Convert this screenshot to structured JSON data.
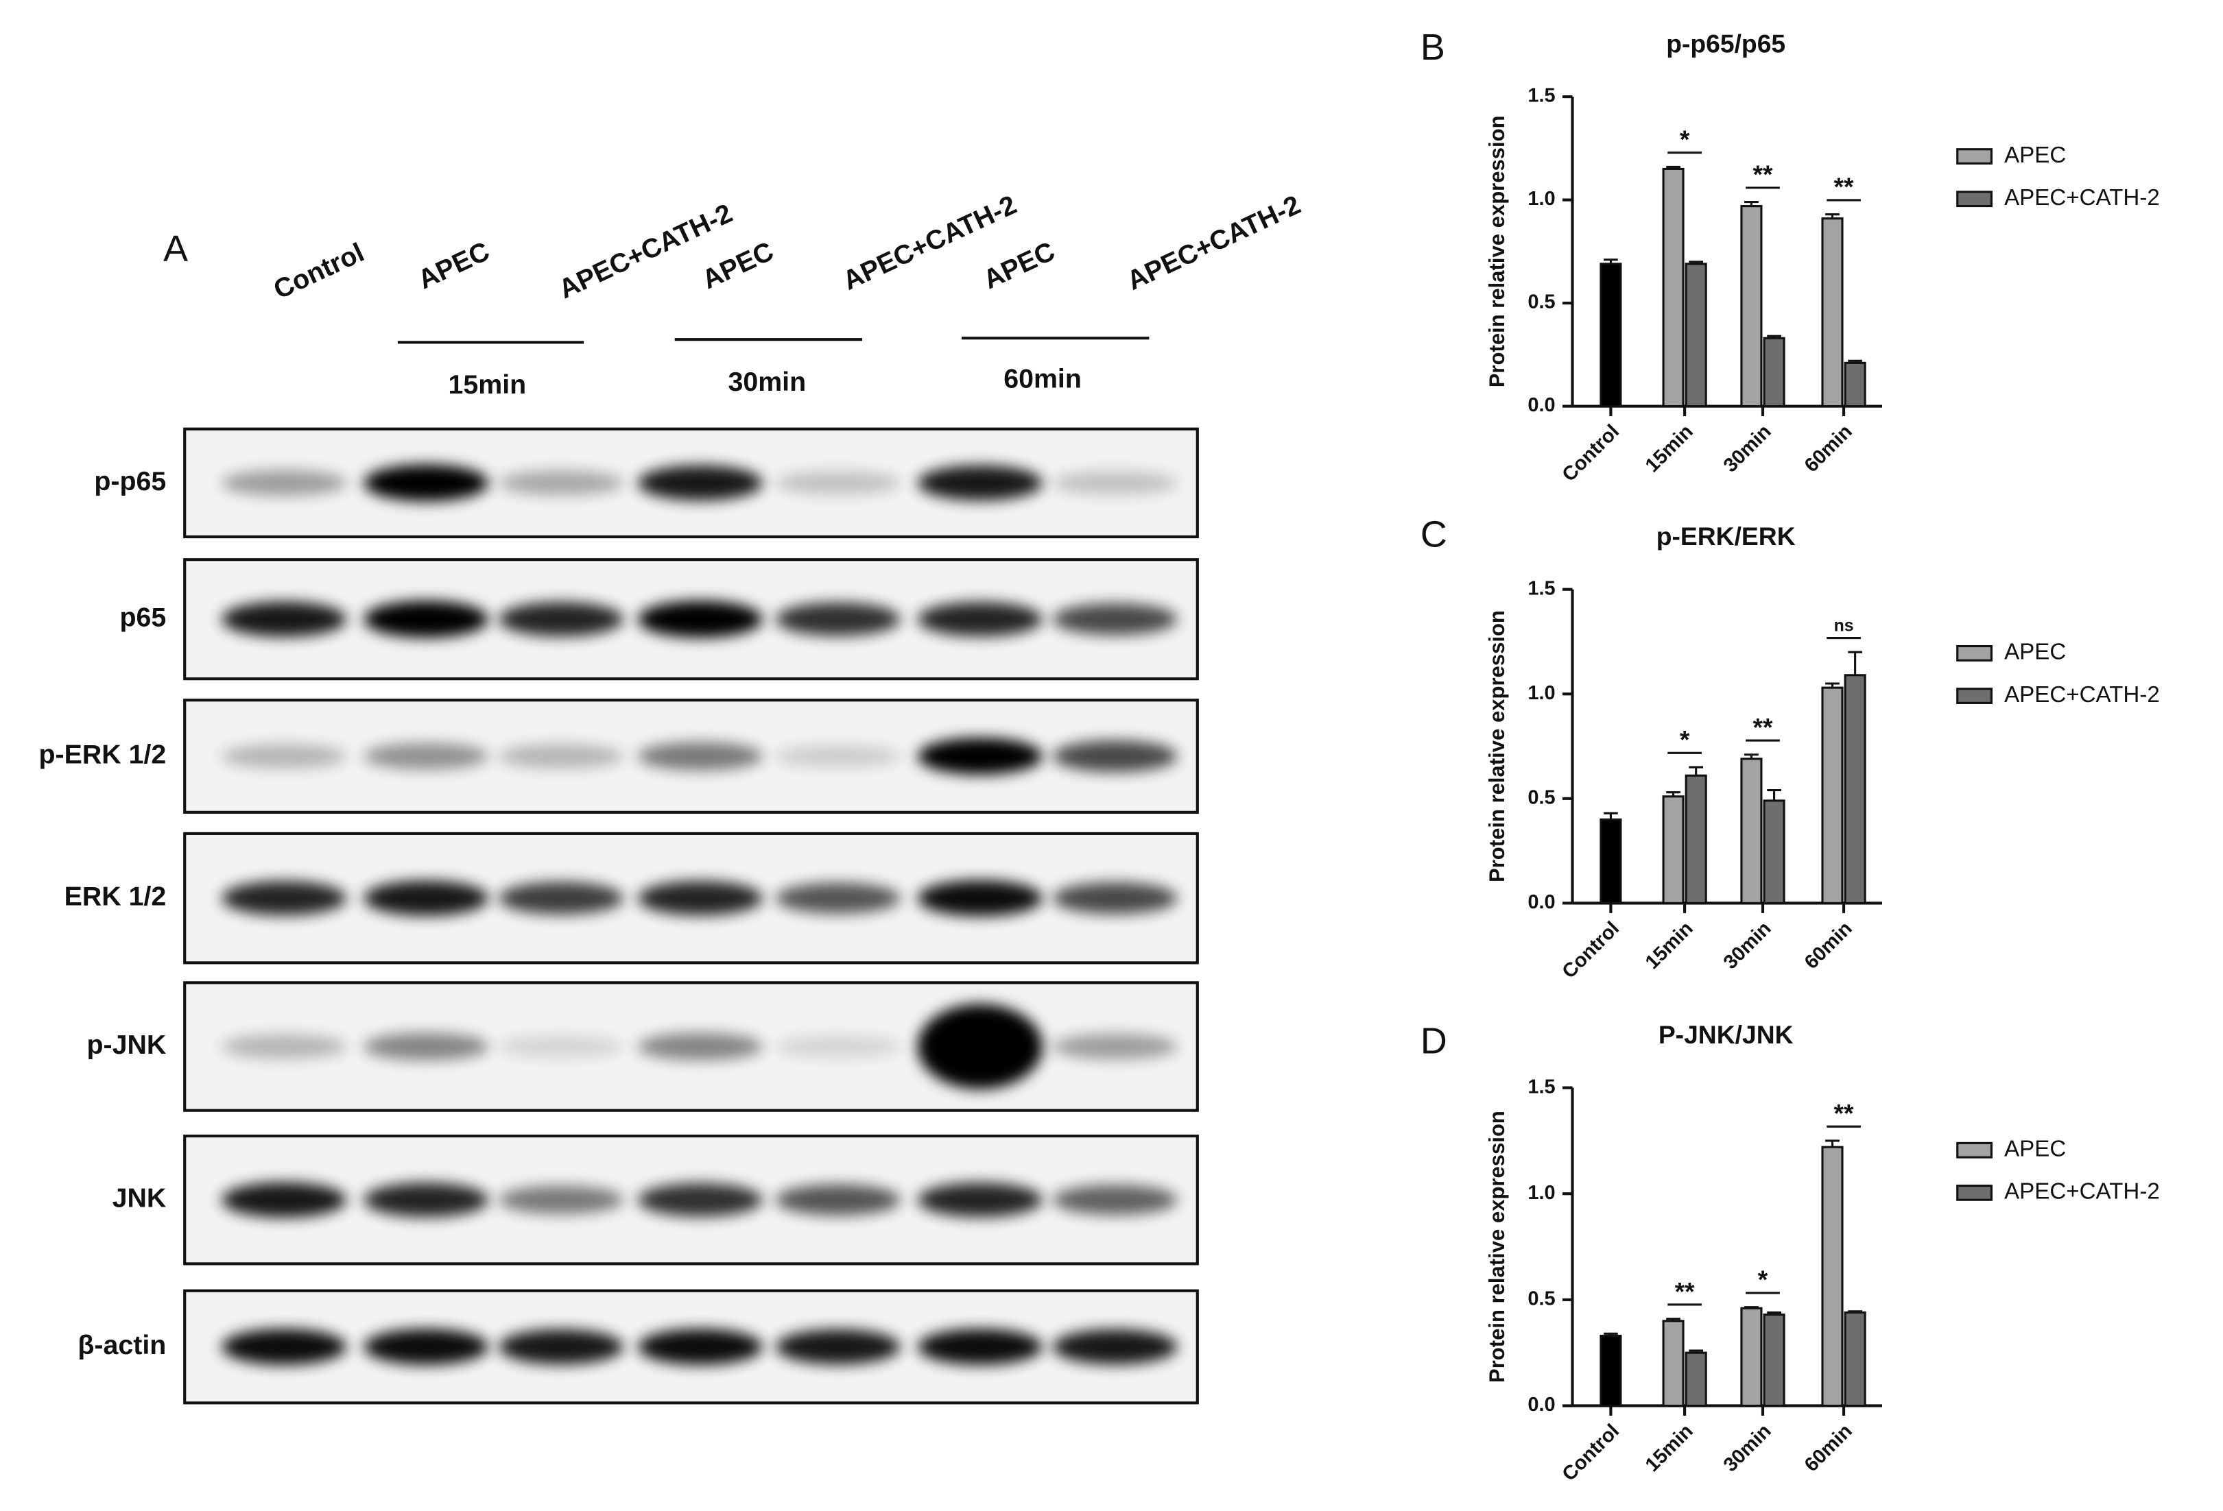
{
  "blot": {
    "label": "A",
    "lanes": [
      "Control",
      "APEC",
      "APEC+CATH-2",
      "APEC",
      "APEC+CATH-2",
      "APEC",
      "APEC+CATH-2"
    ],
    "time_points": [
      "15min",
      "30min",
      "60min"
    ],
    "proteins": [
      "p-p65",
      "p65",
      "p-ERK 1/2",
      "ERK 1/2",
      "p-JNK",
      "JNK",
      "β-actin"
    ]
  },
  "chart_data": [
    {
      "type": "bar",
      "panel": "B",
      "title": "p-p65/p65",
      "ylabel": "Protein relative expression",
      "categories": [
        "Control",
        "15min",
        "30min",
        "60min"
      ],
      "control": {
        "value": 0.69,
        "error": 0.02,
        "color": "#000000"
      },
      "series": [
        {
          "name": "APEC",
          "color": "#a3a3a3",
          "values": [
            null,
            1.15,
            0.97,
            0.91
          ],
          "errors": [
            null,
            0.01,
            0.02,
            0.02
          ]
        },
        {
          "name": "APEC+CATH-2",
          "color": "#6e6e6e",
          "values": [
            null,
            0.69,
            0.33,
            0.21
          ],
          "errors": [
            null,
            0.01,
            0.01,
            0.01
          ]
        }
      ],
      "significance": [
        null,
        "*",
        "**",
        "**"
      ],
      "ylim": [
        0,
        1.5
      ],
      "yticks": [
        {
          "value": 0,
          "label": "0.0"
        },
        {
          "value": 0.5,
          "label": "0.5"
        },
        {
          "value": 1,
          "label": "1.0"
        },
        {
          "value": 1.5,
          "label": "1.5"
        }
      ]
    },
    {
      "type": "bar",
      "panel": "C",
      "title": "p-ERK/ERK",
      "ylabel": "Protein relative expression",
      "categories": [
        "Control",
        "15min",
        "30min",
        "60min"
      ],
      "control": {
        "value": 0.4,
        "error": 0.03,
        "color": "#000000"
      },
      "series": [
        {
          "name": "APEC",
          "color": "#a3a3a3",
          "values": [
            null,
            0.51,
            0.69,
            1.03
          ],
          "errors": [
            null,
            0.02,
            0.02,
            0.02
          ]
        },
        {
          "name": "APEC+CATH-2",
          "color": "#6e6e6e",
          "values": [
            null,
            0.61,
            0.49,
            1.09
          ],
          "errors": [
            null,
            0.04,
            0.05,
            0.11
          ]
        }
      ],
      "significance": [
        null,
        "*",
        "**",
        "ns"
      ],
      "ylim": [
        0,
        1.5
      ],
      "yticks": [
        {
          "value": 0,
          "label": "0.0"
        },
        {
          "value": 0.5,
          "label": "0.5"
        },
        {
          "value": 1,
          "label": "1.0"
        },
        {
          "value": 1.5,
          "label": "1.5"
        }
      ]
    },
    {
      "type": "bar",
      "panel": "D",
      "title": "P-JNK/JNK",
      "ylabel": "Protein relative expression",
      "categories": [
        "Control",
        "15min",
        "30min",
        "60min"
      ],
      "control": {
        "value": 0.33,
        "error": 0.01,
        "color": "#000000"
      },
      "series": [
        {
          "name": "APEC",
          "color": "#a3a3a3",
          "values": [
            null,
            0.4,
            0.46,
            1.22
          ],
          "errors": [
            null,
            0.01,
            0.005,
            0.03
          ]
        },
        {
          "name": "APEC+CATH-2",
          "color": "#6e6e6e",
          "values": [
            null,
            0.25,
            0.43,
            0.44
          ],
          "errors": [
            null,
            0.01,
            0.01,
            0.005
          ]
        }
      ],
      "significance": [
        null,
        "**",
        "*",
        "**"
      ],
      "ylim": [
        0,
        1.5
      ],
      "yticks": [
        {
          "value": 0,
          "label": "0.0"
        },
        {
          "value": 0.5,
          "label": "0.5"
        },
        {
          "value": 1,
          "label": "1.0"
        },
        {
          "value": 1.5,
          "label": "1.5"
        }
      ]
    }
  ]
}
